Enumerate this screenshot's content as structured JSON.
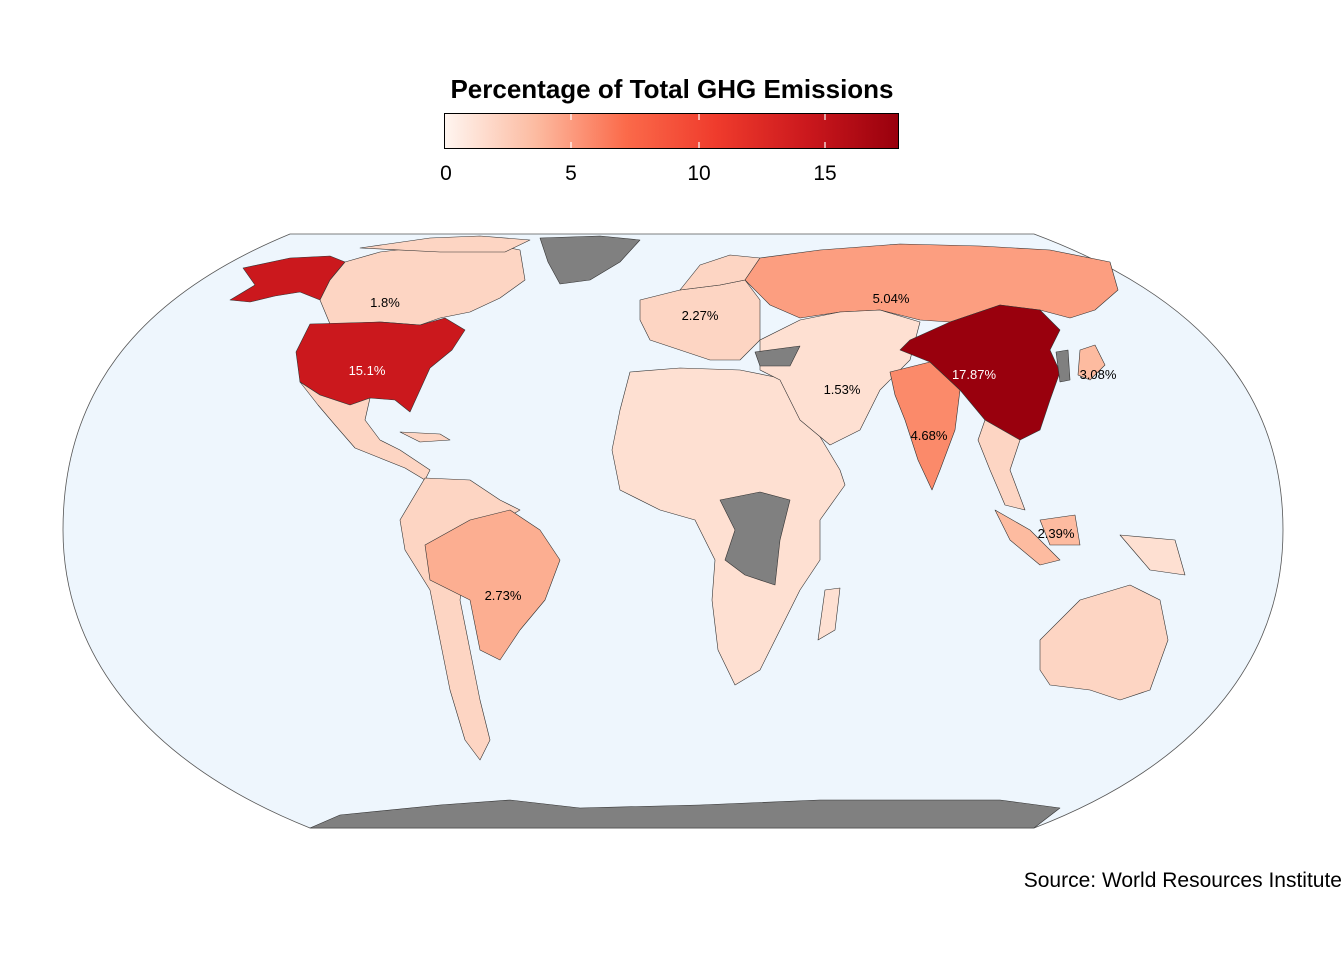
{
  "legend": {
    "title": "Percentage of Total GHG Emissions",
    "ticks": [
      {
        "value": 0,
        "label": "0"
      },
      {
        "value": 5,
        "label": "5"
      },
      {
        "value": 10,
        "label": "10"
      },
      {
        "value": 15,
        "label": "15"
      }
    ],
    "range": [
      0,
      18
    ],
    "colors": [
      "#fff5f0",
      "#fcbba1",
      "#fb6a4a",
      "#ef3b2c",
      "#cb181d",
      "#99000d"
    ]
  },
  "map": {
    "ocean_color": "#eef6fd",
    "no_data_color": "#808080",
    "labels": [
      {
        "country": "Canada",
        "text": "1.8%",
        "value": 1.8
      },
      {
        "country": "United States",
        "text": "15.1%",
        "value": 15.1
      },
      {
        "country": "European Union",
        "text": "2.27%",
        "value": 2.27
      },
      {
        "country": "Russia",
        "text": "5.04%",
        "value": 5.04
      },
      {
        "country": "China",
        "text": "17.87%",
        "value": 17.87
      },
      {
        "country": "Japan",
        "text": "3.08%",
        "value": 3.08
      },
      {
        "country": "Iran",
        "text": "1.53%",
        "value": 1.53
      },
      {
        "country": "India",
        "text": "4.68%",
        "value": 4.68
      },
      {
        "country": "Indonesia",
        "text": "2.39%",
        "value": 2.39
      },
      {
        "country": "Brazil",
        "text": "2.73%",
        "value": 2.73
      }
    ]
  },
  "source": "Source: World Resources Institute"
}
